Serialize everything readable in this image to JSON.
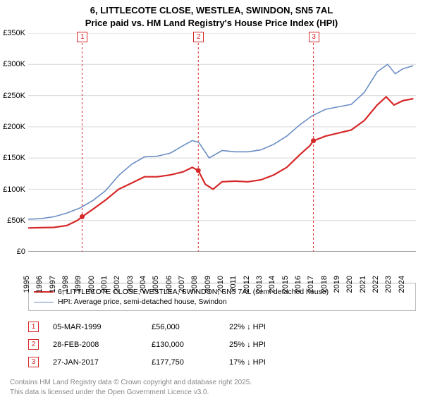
{
  "title_line1": "6, LITTLECOTE CLOSE, WESTLEA, SWINDON, SN5 7AL",
  "title_line2": "Price paid vs. HM Land Registry's House Price Index (HPI)",
  "chart": {
    "type": "line",
    "background_color": "#ffffff",
    "grid_color": "#d9d9d9",
    "axis_color": "#333333",
    "ylim": [
      0,
      350000
    ],
    "ytick_step": 50000,
    "yticks": [
      "£0",
      "£50K",
      "£100K",
      "£150K",
      "£200K",
      "£250K",
      "£300K",
      "£350K"
    ],
    "xlim": [
      1995,
      2025
    ],
    "xticks": [
      1995,
      1996,
      1997,
      1998,
      1999,
      2000,
      2001,
      2002,
      2003,
      2004,
      2005,
      2006,
      2007,
      2008,
      2009,
      2010,
      2011,
      2012,
      2013,
      2014,
      2015,
      2016,
      2017,
      2018,
      2019,
      2020,
      2021,
      2022,
      2023,
      2024
    ],
    "series": [
      {
        "name": "price_paid",
        "color": "#d62728",
        "width": 2.2,
        "points": [
          [
            1995,
            38000
          ],
          [
            1996,
            38500
          ],
          [
            1997,
            39000
          ],
          [
            1998,
            42000
          ],
          [
            1998.8,
            50000
          ],
          [
            1999.17,
            56000
          ],
          [
            2000,
            68000
          ],
          [
            2001,
            83000
          ],
          [
            2002,
            100000
          ],
          [
            2003,
            110000
          ],
          [
            2004,
            120000
          ],
          [
            2005,
            120000
          ],
          [
            2006,
            123000
          ],
          [
            2007,
            128000
          ],
          [
            2007.7,
            135000
          ],
          [
            2008.16,
            130000
          ],
          [
            2008.7,
            108000
          ],
          [
            2009.3,
            100000
          ],
          [
            2010,
            112000
          ],
          [
            2011,
            113000
          ],
          [
            2012,
            112000
          ],
          [
            2013,
            115000
          ],
          [
            2014,
            123000
          ],
          [
            2015,
            135000
          ],
          [
            2016,
            155000
          ],
          [
            2016.8,
            170000
          ],
          [
            2017.07,
            177750
          ],
          [
            2018,
            185000
          ],
          [
            2019,
            190000
          ],
          [
            2020,
            195000
          ],
          [
            2021,
            210000
          ],
          [
            2022,
            235000
          ],
          [
            2022.7,
            248000
          ],
          [
            2023.3,
            235000
          ],
          [
            2024,
            242000
          ],
          [
            2024.8,
            245000
          ]
        ],
        "sale_markers": [
          {
            "x": 1999.17,
            "y": 56000,
            "n": "1"
          },
          {
            "x": 2008.16,
            "y": 130000,
            "n": "2"
          },
          {
            "x": 2017.07,
            "y": 177750,
            "n": "3"
          }
        ]
      },
      {
        "name": "hpi",
        "color": "#6b8ec4",
        "width": 1.6,
        "points": [
          [
            1995,
            52000
          ],
          [
            1996,
            53000
          ],
          [
            1997,
            56000
          ],
          [
            1998,
            62000
          ],
          [
            1999,
            70000
          ],
          [
            2000,
            82000
          ],
          [
            2001,
            98000
          ],
          [
            2002,
            122000
          ],
          [
            2003,
            140000
          ],
          [
            2004,
            152000
          ],
          [
            2005,
            153000
          ],
          [
            2006,
            158000
          ],
          [
            2007,
            170000
          ],
          [
            2007.7,
            178000
          ],
          [
            2008.2,
            175000
          ],
          [
            2009,
            150000
          ],
          [
            2010,
            162000
          ],
          [
            2011,
            160000
          ],
          [
            2012,
            160000
          ],
          [
            2013,
            163000
          ],
          [
            2014,
            172000
          ],
          [
            2015,
            185000
          ],
          [
            2016,
            203000
          ],
          [
            2017,
            218000
          ],
          [
            2018,
            228000
          ],
          [
            2019,
            232000
          ],
          [
            2020,
            236000
          ],
          [
            2021,
            255000
          ],
          [
            2022,
            288000
          ],
          [
            2022.8,
            300000
          ],
          [
            2023.4,
            285000
          ],
          [
            2024,
            293000
          ],
          [
            2024.8,
            298000
          ]
        ]
      }
    ],
    "sale_line_color": "#d62728",
    "sale_line_dash": "3,3"
  },
  "legend": {
    "items": [
      {
        "color": "#d62728",
        "width": 2.2,
        "label": "6, LITTLECOTE CLOSE, WESTLEA, SWINDON, SN5 7AL (semi-detached house)"
      },
      {
        "color": "#6b8ec4",
        "width": 1.6,
        "label": "HPI: Average price, semi-detached house, Swindon"
      }
    ]
  },
  "sales": [
    {
      "n": "1",
      "date": "05-MAR-1999",
      "price": "£56,000",
      "diff": "22% ↓ HPI"
    },
    {
      "n": "2",
      "date": "28-FEB-2008",
      "price": "£130,000",
      "diff": "25% ↓ HPI"
    },
    {
      "n": "3",
      "date": "27-JAN-2017",
      "price": "£177,750",
      "diff": "17% ↓ HPI"
    }
  ],
  "footer_line1": "Contains HM Land Registry data © Crown copyright and database right 2025.",
  "footer_line2": "This data is licensed under the Open Government Licence v3.0."
}
